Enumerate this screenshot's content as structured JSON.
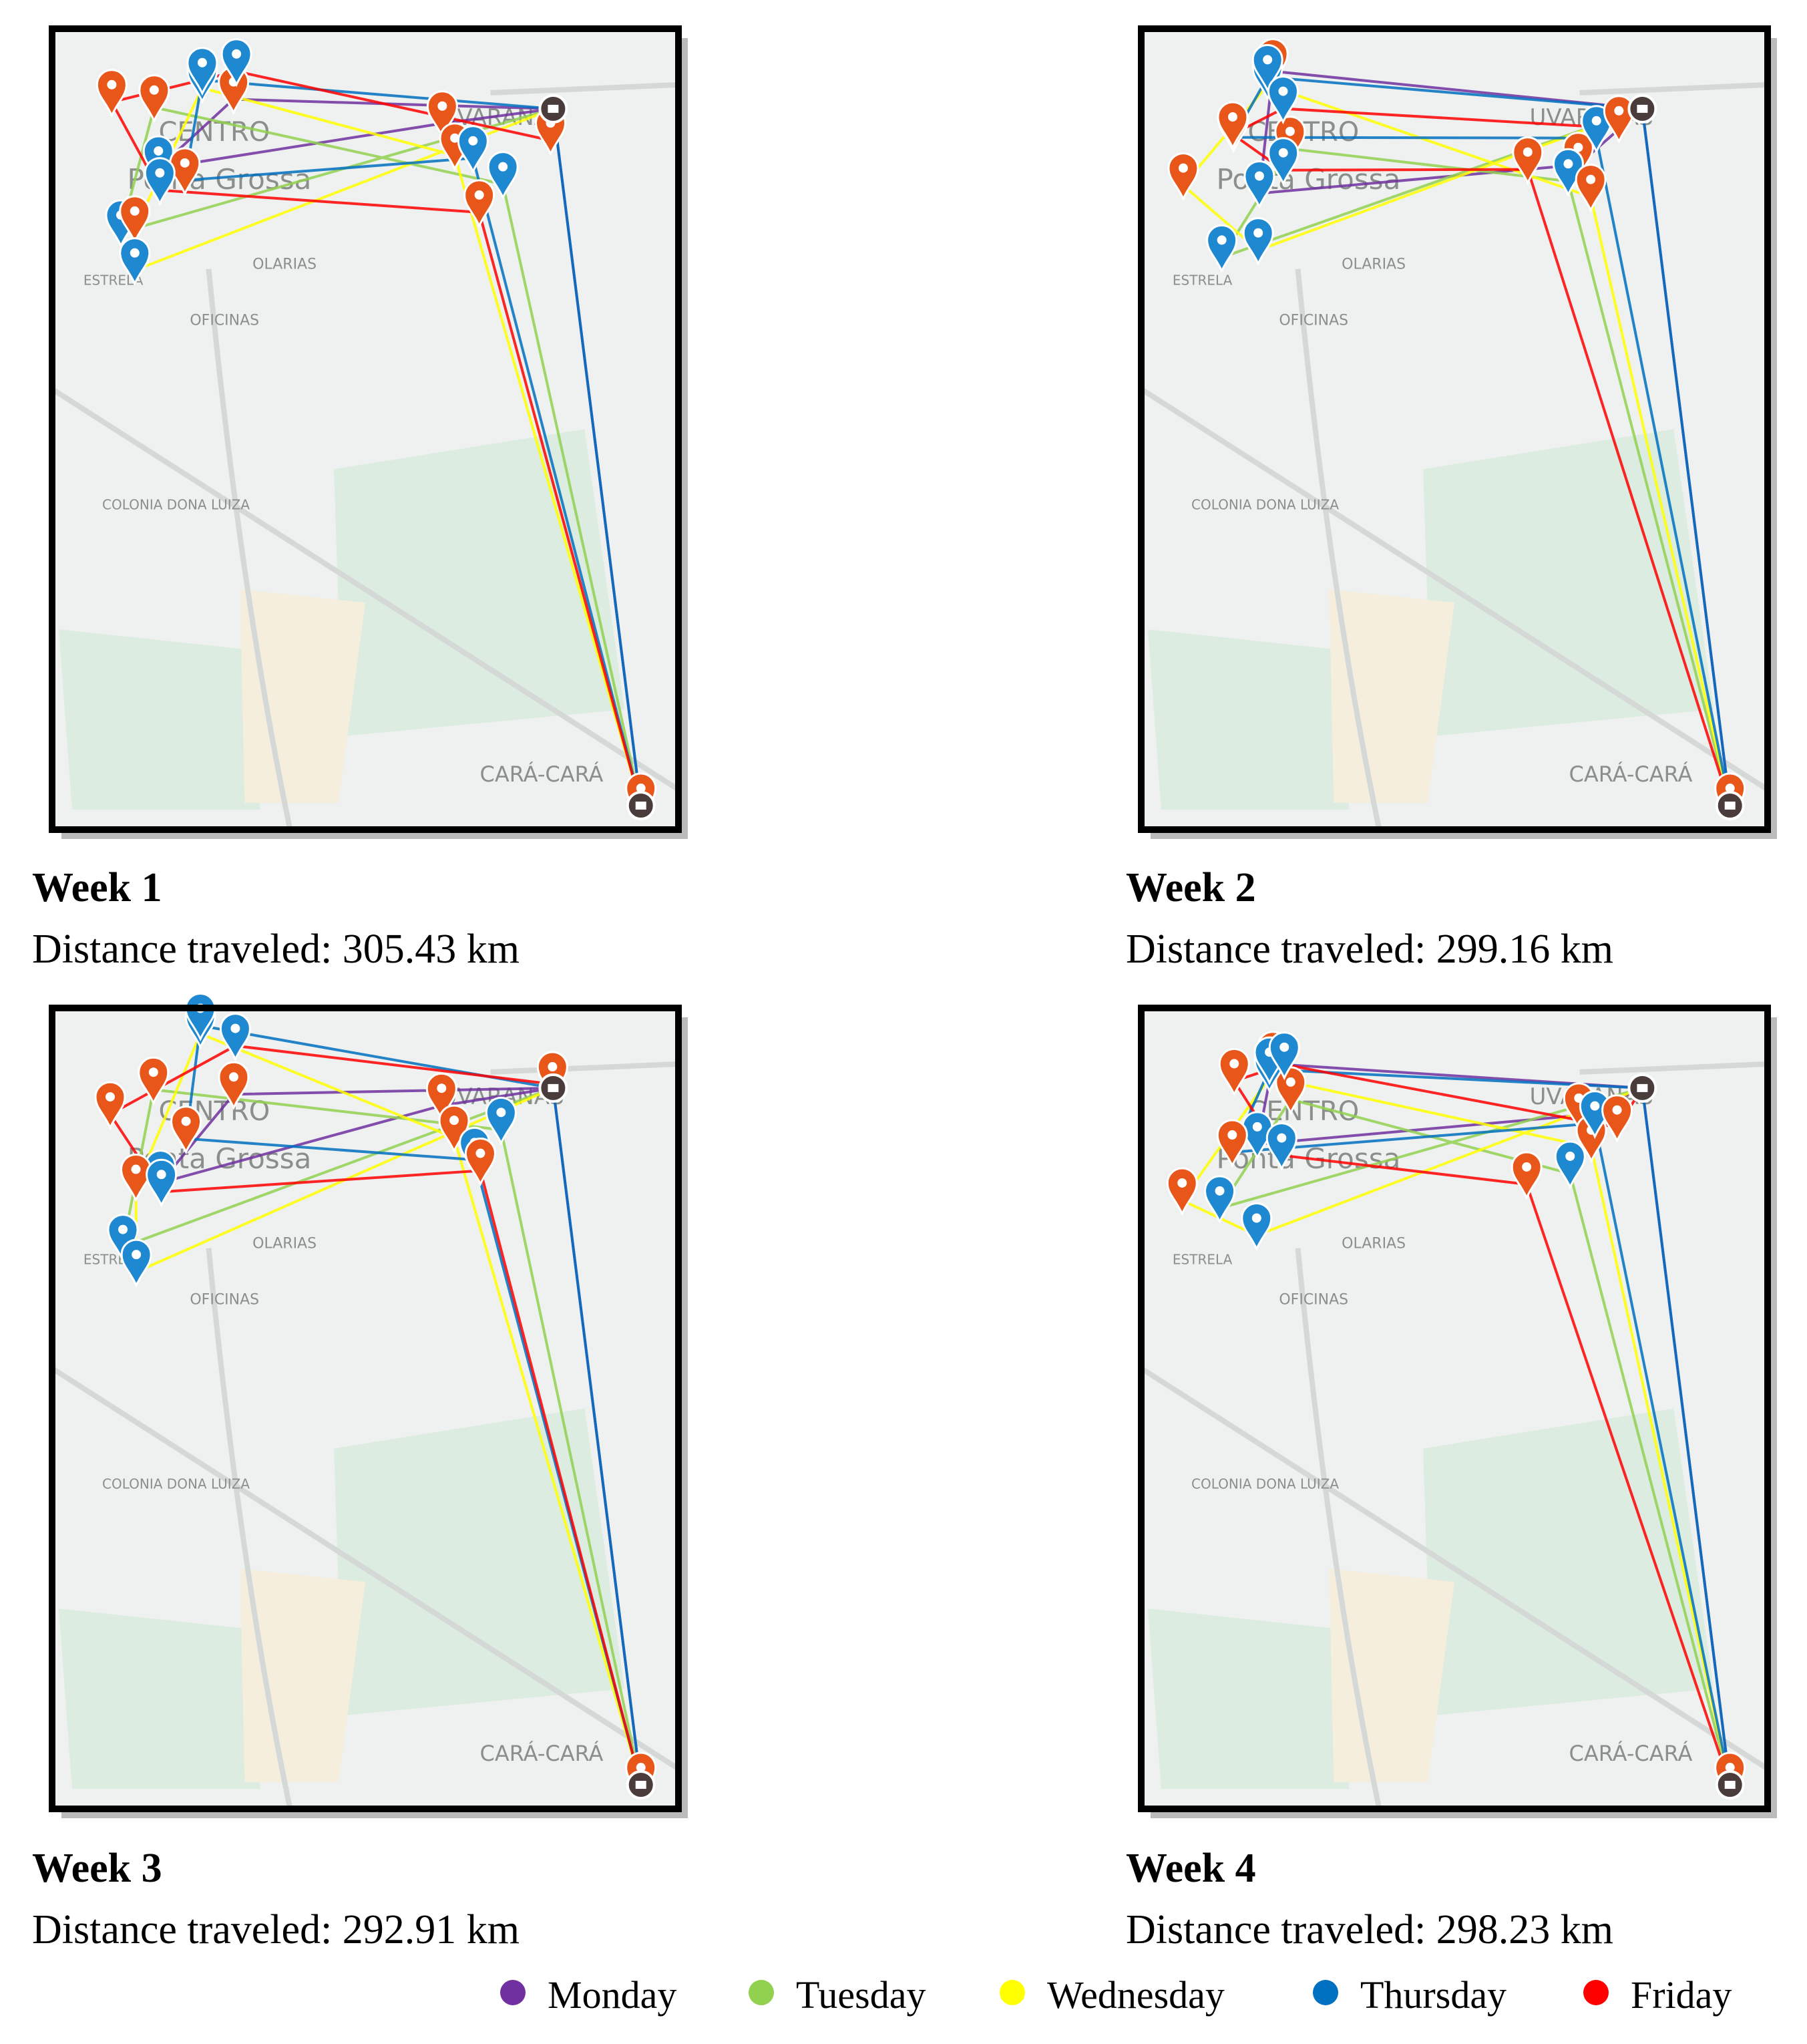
{
  "panels": [
    {
      "title": "Week 1",
      "distance": "Distance traveled: 305.43 km"
    },
    {
      "title": "Week 2",
      "distance": "Distance traveled: 299.16 km"
    },
    {
      "title": "Week 3",
      "distance": "Distance traveled: 292.91 km"
    },
    {
      "title": "Week 4",
      "distance": "Distance traveled: 298.23 km"
    }
  ],
  "map_labels": [
    "CENTRO",
    "Ponta Grossa",
    "UVARANAS",
    "OLARIAS",
    "OFICINAS",
    "ESTRELA",
    "COLONIA DONA LUIZA",
    "CARÁ-CARÁ"
  ],
  "legend": [
    {
      "name": "Monday",
      "color": "#7030a0"
    },
    {
      "name": "Tuesday",
      "color": "#92d050"
    },
    {
      "name": "Wednesday",
      "color": "#ffff00"
    },
    {
      "name": "Thursday",
      "color": "#0070c0"
    },
    {
      "name": "Friday",
      "color": "#ff0000"
    }
  ]
}
